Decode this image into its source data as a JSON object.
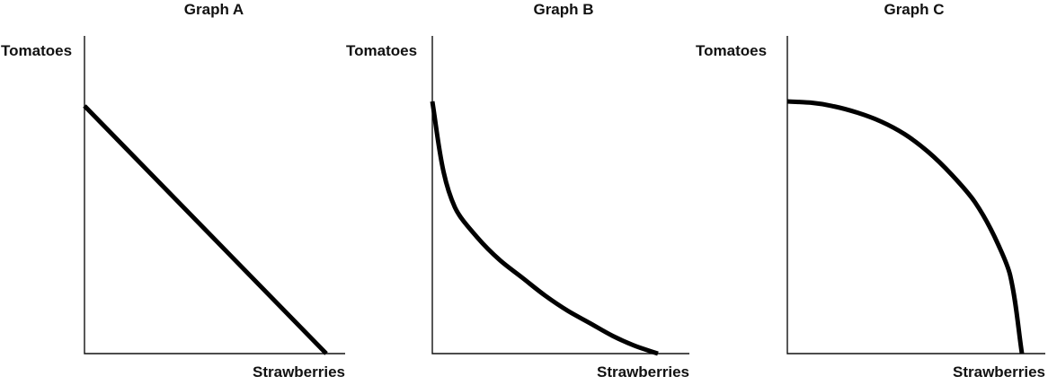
{
  "chart_data": [
    {
      "type": "line",
      "title": "Graph A",
      "xlabel": "Strawberries",
      "ylabel": "Tomatoes",
      "xlim": [
        0,
        1
      ],
      "ylim": [
        0,
        1.2
      ],
      "curve": "linear",
      "x": [
        0,
        1
      ],
      "y": [
        1,
        0
      ],
      "series_color": "#000000"
    },
    {
      "type": "line",
      "title": "Graph B",
      "xlabel": "Strawberries",
      "ylabel": "Tomatoes",
      "xlim": [
        0,
        1
      ],
      "ylim": [
        0,
        1.2
      ],
      "curve": "convex",
      "x": [
        0,
        0.05,
        0.1,
        0.2,
        0.3,
        0.4,
        0.5,
        0.6,
        0.7,
        0.8,
        0.9,
        1.0
      ],
      "y": [
        1.0,
        0.72,
        0.58,
        0.46,
        0.37,
        0.3,
        0.23,
        0.17,
        0.12,
        0.07,
        0.03,
        0.0
      ],
      "series_color": "#000000"
    },
    {
      "type": "line",
      "title": "Graph C",
      "xlabel": "Strawberries",
      "ylabel": "Tomatoes",
      "xlim": [
        0,
        1.05
      ],
      "ylim": [
        0,
        1.2
      ],
      "curve": "concave",
      "x": [
        0,
        0.1,
        0.2,
        0.3,
        0.4,
        0.5,
        0.6,
        0.7,
        0.8,
        0.9,
        0.95,
        1.0
      ],
      "y": [
        1.0,
        0.995,
        0.98,
        0.955,
        0.92,
        0.87,
        0.8,
        0.71,
        0.6,
        0.43,
        0.31,
        0.0
      ],
      "series_color": "#000000"
    }
  ]
}
